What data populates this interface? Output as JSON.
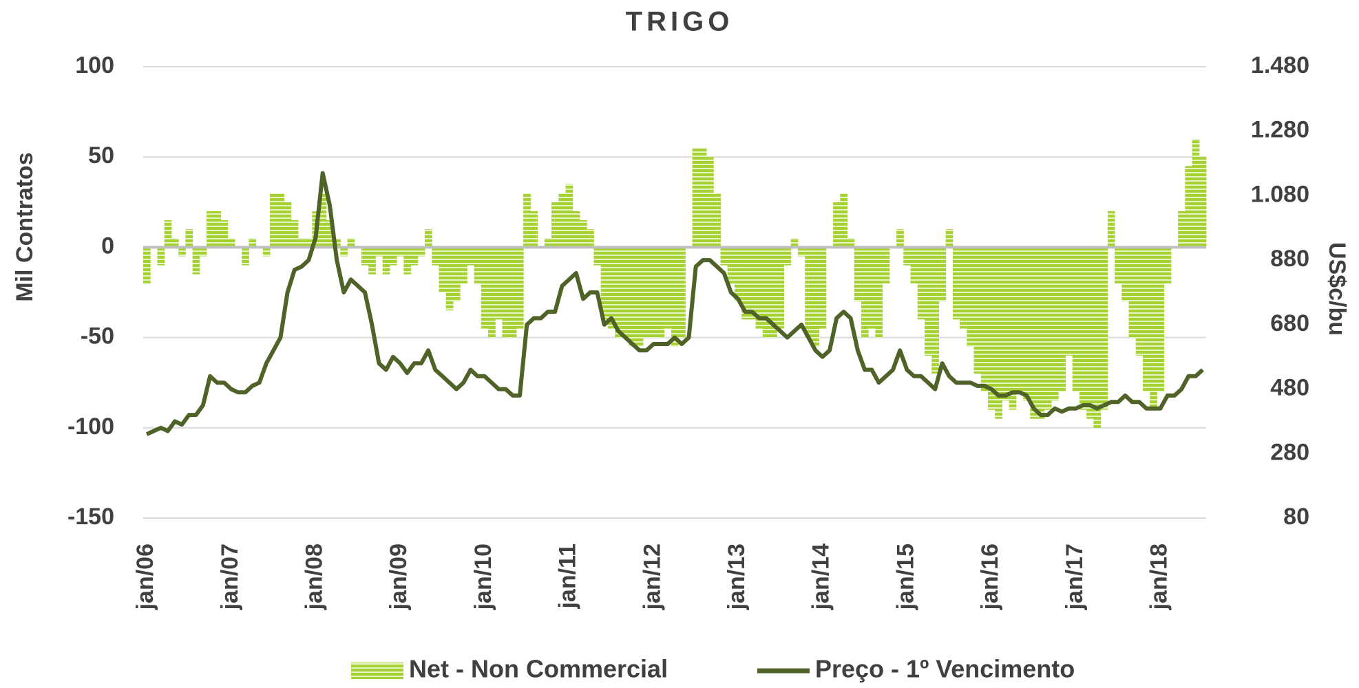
{
  "chart_data": {
    "type": "combo",
    "title": "TRIGO",
    "ylabel": "Mil Contratos",
    "y2label": "US$c/bu",
    "categories": [
      "jan/06",
      null,
      null,
      null,
      null,
      null,
      null,
      null,
      null,
      null,
      null,
      null,
      "jan/07",
      null,
      null,
      null,
      null,
      null,
      null,
      null,
      null,
      null,
      null,
      null,
      "jan/08",
      null,
      null,
      null,
      null,
      null,
      null,
      null,
      null,
      null,
      null,
      null,
      "jan/09",
      null,
      null,
      null,
      null,
      null,
      null,
      null,
      null,
      null,
      null,
      null,
      "jan/10",
      null,
      null,
      null,
      null,
      null,
      null,
      null,
      null,
      null,
      null,
      null,
      "jan/11",
      null,
      null,
      null,
      null,
      null,
      null,
      null,
      null,
      null,
      null,
      null,
      "jan/12",
      null,
      null,
      null,
      null,
      null,
      null,
      null,
      null,
      null,
      null,
      null,
      "jan/13",
      null,
      null,
      null,
      null,
      null,
      null,
      null,
      null,
      null,
      null,
      null,
      "jan/14",
      null,
      null,
      null,
      null,
      null,
      null,
      null,
      null,
      null,
      null,
      null,
      "jan/15",
      null,
      null,
      null,
      null,
      null,
      null,
      null,
      null,
      null,
      null,
      null,
      "jan/16",
      null,
      null,
      null,
      null,
      null,
      null,
      null,
      null,
      null,
      null,
      null,
      "jan/17",
      null,
      null,
      null,
      null,
      null,
      null,
      null,
      null,
      null,
      null,
      null,
      "jan/18",
      null,
      null,
      null,
      null,
      null,
      null
    ],
    "series": [
      {
        "name": "Net - Non Commercial",
        "type": "bar",
        "color": "#a6d234",
        "values": [
          -20,
          0,
          -10,
          15,
          5,
          -5,
          10,
          -15,
          -5,
          20,
          20,
          15,
          5,
          0,
          -10,
          5,
          0,
          -5,
          30,
          30,
          25,
          15,
          5,
          5,
          20,
          30,
          15,
          5,
          -5,
          5,
          0,
          -10,
          -15,
          -5,
          -15,
          -10,
          -5,
          -15,
          -10,
          -5,
          10,
          -10,
          -25,
          -35,
          -30,
          -20,
          -10,
          -20,
          -45,
          -50,
          -40,
          -50,
          -50,
          -45,
          30,
          20,
          0,
          5,
          25,
          30,
          35,
          20,
          15,
          10,
          -10,
          -40,
          -45,
          -50,
          -50,
          -55,
          -55,
          -50,
          -50,
          -50,
          -45,
          -55,
          -50,
          0,
          55,
          55,
          50,
          30,
          -10,
          -20,
          -30,
          -40,
          -40,
          -45,
          -50,
          -50,
          -45,
          -10,
          5,
          -5,
          -50,
          -55,
          -45,
          0,
          25,
          30,
          5,
          -30,
          -50,
          -45,
          -50,
          -20,
          0,
          10,
          -10,
          -20,
          -40,
          -60,
          -70,
          -30,
          10,
          -40,
          -45,
          -55,
          -70,
          -80,
          -90,
          -95,
          -85,
          -90,
          -80,
          -85,
          -95,
          -95,
          -90,
          -85,
          -80,
          -60,
          -80,
          -90,
          -95,
          -100,
          -90,
          20,
          -20,
          -30,
          -50,
          -60,
          -80,
          -90,
          -80,
          -20,
          0,
          20,
          45,
          60,
          50
        ]
      },
      {
        "name": "Preço - 1º Vencimento",
        "type": "line",
        "axis": "y2",
        "color": "#4f6228",
        "values": [
          340,
          350,
          360,
          350,
          380,
          370,
          400,
          400,
          430,
          520,
          500,
          500,
          480,
          470,
          470,
          490,
          500,
          560,
          600,
          640,
          780,
          850,
          860,
          880,
          950,
          1150,
          1050,
          880,
          780,
          820,
          800,
          780,
          680,
          560,
          540,
          580,
          560,
          530,
          560,
          560,
          600,
          540,
          520,
          500,
          480,
          500,
          540,
          520,
          520,
          500,
          480,
          480,
          460,
          460,
          680,
          700,
          700,
          720,
          720,
          800,
          820,
          840,
          760,
          780,
          780,
          680,
          700,
          660,
          640,
          620,
          600,
          600,
          620,
          620,
          620,
          640,
          620,
          640,
          860,
          880,
          880,
          860,
          840,
          780,
          760,
          720,
          720,
          700,
          700,
          680,
          660,
          640,
          660,
          680,
          640,
          600,
          580,
          600,
          700,
          720,
          700,
          600,
          540,
          540,
          500,
          520,
          540,
          600,
          540,
          520,
          520,
          500,
          480,
          560,
          520,
          500,
          500,
          500,
          490,
          490,
          480,
          460,
          460,
          470,
          470,
          460,
          420,
          400,
          400,
          420,
          410,
          420,
          420,
          430,
          430,
          420,
          430,
          440,
          440,
          460,
          440,
          440,
          420,
          420,
          420,
          460,
          460,
          480,
          520,
          520,
          540
        ]
      }
    ],
    "ylim": [
      -150,
      100
    ],
    "yticks": [
      -150,
      -100,
      -50,
      0,
      50,
      100
    ],
    "y2lim": [
      80,
      1480
    ],
    "y2ticks": [
      80,
      280,
      480,
      680,
      880,
      {
        "value": 1080,
        "label": "1.080"
      },
      {
        "value": 1280,
        "label": "1.280"
      },
      {
        "value": 1480,
        "label": "1.480"
      }
    ],
    "grid": true,
    "legend": "bottom"
  }
}
